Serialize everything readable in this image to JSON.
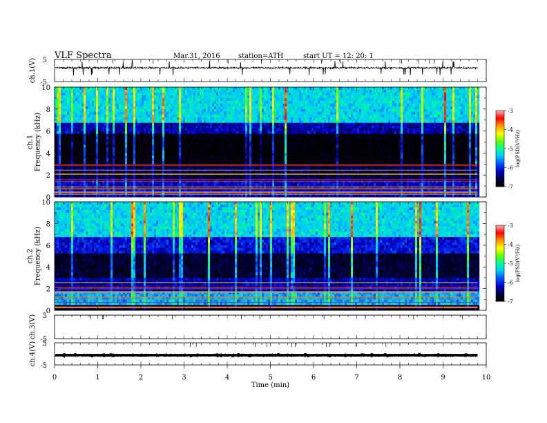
{
  "header": {
    "title": "VLF  Spectra",
    "date": "Mar.31, 2016",
    "station": "station=ATH",
    "start": "start  UT  =    12: 20: 1"
  },
  "chart_data": [
    {
      "type": "line",
      "panel": "ch1-waveform",
      "ylabel": "ch.1(V)",
      "yticks": [
        "5",
        "-5"
      ],
      "ylim": [
        -5,
        5
      ],
      "xlim": [
        0,
        10
      ],
      "baseline_v": 1.2,
      "noise_amplitude_v": 0.6,
      "data_end_min": 9.8
    },
    {
      "type": "heatmap",
      "panel": "ch1-spectrogram",
      "ylabel": "ch.1\nFrequency  (kHz)",
      "ylabel_lines": [
        "ch.1",
        "Frequency  (kHz)"
      ],
      "yticks": [
        "0",
        "2",
        "4",
        "6",
        "8",
        "10"
      ],
      "ylim": [
        0,
        10
      ],
      "xlim": [
        0,
        10
      ],
      "data_end_min": 9.8,
      "colorbar": {
        "label": "log(PSD(V²/Hz)",
        "ticks": [
          "-3",
          "-4",
          "-5",
          "-6",
          "-7"
        ],
        "range": [
          -7,
          -3
        ]
      },
      "bands_khz": [
        {
          "from": 0.0,
          "to": 1.4,
          "log_psd": -6.2
        },
        {
          "from": 1.4,
          "to": 3.0,
          "log_psd": -6.6
        },
        {
          "from": 3.0,
          "to": 5.8,
          "log_psd": -7.0
        },
        {
          "from": 5.8,
          "to": 6.8,
          "log_psd": -6.3
        },
        {
          "from": 6.8,
          "to": 10.0,
          "log_psd": -5.3
        }
      ]
    },
    {
      "type": "heatmap",
      "panel": "ch2-spectrogram",
      "ylabel": "ch.2\nFrequency  (kHz)",
      "ylabel_lines": [
        "ch.2",
        "Frequency  (kHz)"
      ],
      "yticks": [
        "0",
        "2",
        "4",
        "6",
        "8",
        "10"
      ],
      "ylim": [
        0,
        10
      ],
      "xlim": [
        0,
        10
      ],
      "data_end_min": 9.8,
      "colorbar": {
        "label": "log(PSD(V²/Hz)",
        "ticks": [
          "-3",
          "-4",
          "-5",
          "-6",
          "-7"
        ],
        "range": [
          -7,
          -3
        ]
      },
      "bands_khz": [
        {
          "from": 0.0,
          "to": 0.6,
          "log_psd": -6.8
        },
        {
          "from": 0.6,
          "to": 1.8,
          "log_psd": -5.5
        },
        {
          "from": 1.8,
          "to": 3.0,
          "log_psd": -6.3
        },
        {
          "from": 3.0,
          "to": 5.2,
          "log_psd": -6.7
        },
        {
          "from": 5.2,
          "to": 6.8,
          "log_psd": -6.1
        },
        {
          "from": 6.8,
          "to": 10.0,
          "log_psd": -5.3
        }
      ]
    },
    {
      "type": "line",
      "panel": "ch3-waveform",
      "ylabel": "ch.3(V)",
      "yticks": [
        "5",
        "-5"
      ],
      "ylim": [
        -5,
        5
      ],
      "xlim": [
        0,
        10
      ],
      "baseline_v": 5.0,
      "noise_amplitude_v": 0.0,
      "data_end_min": 9.8
    },
    {
      "type": "line",
      "panel": "ch4-waveform",
      "ylabel": "ch.4(V)",
      "yticks": [
        "5",
        "-5"
      ],
      "ylim": [
        -5,
        5
      ],
      "xlim": [
        0,
        10
      ],
      "baseline_v": -0.6,
      "noise_amplitude_v": 0.15,
      "data_end_min": 9.8
    }
  ],
  "xaxis": {
    "label": "Time  (min)",
    "ticks": [
      "0",
      "1",
      "2",
      "3",
      "4",
      "5",
      "6",
      "7",
      "8",
      "9",
      "10"
    ]
  },
  "colors": {
    "colormap": [
      "#000000",
      "#00003c",
      "#0000c8",
      "#0050ff",
      "#00c8ff",
      "#00ff96",
      "#64ff00",
      "#ffff00",
      "#ff9600",
      "#ff0000",
      "#ffb4b4"
    ]
  }
}
